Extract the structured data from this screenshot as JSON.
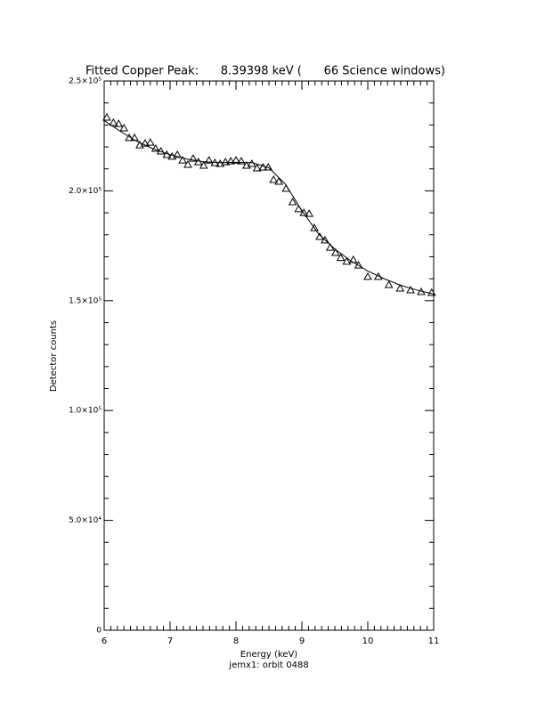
{
  "chart_data": {
    "type": "scatter",
    "title": "Fitted Copper Peak:      8.39398 keV (      66 Science windows)",
    "x_label": "Energy (keV)",
    "subtitle": "jemx1: orbit 0488",
    "y_label": "Detector counts",
    "xlim": [
      6,
      11
    ],
    "xticks": [
      6,
      7,
      8,
      9,
      10,
      11
    ],
    "ylim": [
      0,
      250000
    ],
    "yticks": [
      0,
      {
        "value": 50000,
        "label": "5.0×10⁴"
      },
      {
        "value": 100000,
        "label": "1.0×10⁵"
      },
      {
        "value": 150000,
        "label": "1.5×10⁵"
      },
      {
        "value": 200000,
        "label": "2.0×10⁵"
      },
      {
        "value": 250000,
        "label": "2.5×10⁵"
      }
    ],
    "series": [
      {
        "color": "#000000",
        "marker": "triangle",
        "x": [
          6.04,
          6.14,
          6.22,
          6.3,
          6.38,
          6.46,
          6.54,
          6.62,
          6.7,
          6.78,
          6.86,
          6.95,
          7.03,
          7.11,
          7.19,
          7.27,
          7.35,
          7.43,
          7.51,
          7.59,
          7.68,
          7.76,
          7.84,
          7.92,
          8.0,
          8.08,
          8.16,
          8.24,
          8.32,
          8.41,
          8.49,
          8.57,
          8.65,
          8.76,
          8.86,
          8.95,
          9.03,
          9.11,
          9.19,
          9.27,
          9.35,
          9.43,
          9.51,
          9.59,
          9.68,
          9.78,
          9.86,
          10.0,
          10.16,
          10.32,
          10.49,
          10.65,
          10.81,
          10.97
        ],
        "values": [
          233400,
          231000,
          230500,
          228500,
          224100,
          224100,
          220800,
          221600,
          222000,
          219200,
          218000,
          216400,
          215600,
          216400,
          213900,
          211900,
          214700,
          213100,
          211500,
          213900,
          212700,
          212300,
          213100,
          213500,
          213900,
          213500,
          211500,
          212300,
          210300,
          210700,
          210700,
          205000,
          204200,
          201000,
          194900,
          191700,
          190000,
          189600,
          183100,
          179100,
          177500,
          174200,
          171800,
          169500,
          167800,
          168600,
          166100,
          160900,
          160900,
          157200,
          155600,
          154800,
          154000,
          153600
        ]
      },
      {
        "color": "#000000",
        "marker": "line",
        "x": [
          6.0,
          6.25,
          6.5,
          6.75,
          7.0,
          7.25,
          7.5,
          7.75,
          8.0,
          8.25,
          8.5,
          8.75,
          9.0,
          9.25,
          9.5,
          9.75,
          10.0,
          10.25,
          10.5,
          10.75,
          11.0
        ],
        "values": [
          232000,
          227000,
          222500,
          219000,
          216500,
          214500,
          213300,
          212800,
          213000,
          212800,
          210500,
          203000,
          191000,
          180500,
          173500,
          168000,
          163500,
          160000,
          157000,
          154800,
          153000
        ]
      }
    ]
  }
}
